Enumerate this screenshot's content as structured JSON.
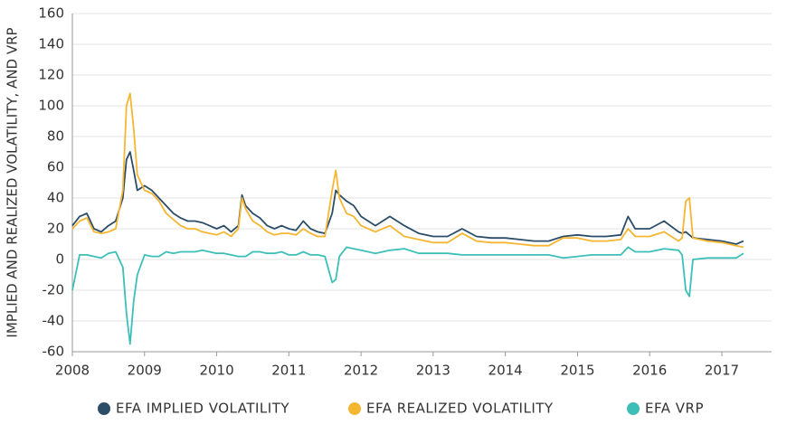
{
  "chart_data": {
    "type": "line",
    "y_label": "IMPLIED AND REALIZED VOLATILITY, AND VRP",
    "x": [
      2008.0,
      2008.1,
      2008.2,
      2008.3,
      2008.4,
      2008.5,
      2008.6,
      2008.7,
      2008.75,
      2008.8,
      2008.85,
      2008.9,
      2009.0,
      2009.1,
      2009.2,
      2009.3,
      2009.4,
      2009.5,
      2009.6,
      2009.7,
      2009.8,
      2009.9,
      2010.0,
      2010.1,
      2010.2,
      2010.3,
      2010.35,
      2010.4,
      2010.5,
      2010.6,
      2010.7,
      2010.8,
      2010.9,
      2011.0,
      2011.1,
      2011.2,
      2011.3,
      2011.4,
      2011.5,
      2011.6,
      2011.65,
      2011.7,
      2011.8,
      2011.9,
      2012.0,
      2012.2,
      2012.4,
      2012.6,
      2012.8,
      2013.0,
      2013.2,
      2013.4,
      2013.6,
      2013.8,
      2014.0,
      2014.2,
      2014.4,
      2014.6,
      2014.8,
      2015.0,
      2015.2,
      2015.4,
      2015.6,
      2015.7,
      2015.8,
      2016.0,
      2016.2,
      2016.4,
      2016.45,
      2016.5,
      2016.55,
      2016.6,
      2016.8,
      2017.0,
      2017.2,
      2017.3
    ],
    "series": [
      {
        "name": "EFA IMPLIED VOLATILITY",
        "color": "#2c4d68",
        "values": [
          22,
          28,
          30,
          20,
          18,
          22,
          25,
          40,
          65,
          70,
          58,
          45,
          48,
          45,
          40,
          35,
          30,
          27,
          25,
          25,
          24,
          22,
          20,
          22,
          18,
          22,
          42,
          35,
          30,
          27,
          22,
          20,
          22,
          20,
          19,
          25,
          20,
          18,
          17,
          30,
          45,
          42,
          38,
          35,
          28,
          22,
          28,
          22,
          17,
          15,
          15,
          20,
          15,
          14,
          14,
          13,
          12,
          12,
          15,
          16,
          15,
          15,
          16,
          28,
          20,
          20,
          25,
          18,
          17,
          18,
          16,
          14,
          13,
          12,
          10,
          12
        ]
      },
      {
        "name": "EFA REALIZED VOLATILITY",
        "color": "#f5b632",
        "values": [
          20,
          25,
          27,
          18,
          17,
          18,
          20,
          45,
          100,
          108,
          85,
          55,
          45,
          43,
          38,
          30,
          26,
          22,
          20,
          20,
          18,
          17,
          16,
          18,
          15,
          20,
          40,
          33,
          25,
          22,
          18,
          16,
          17,
          17,
          16,
          20,
          17,
          15,
          15,
          45,
          58,
          40,
          30,
          28,
          22,
          18,
          22,
          15,
          13,
          11,
          11,
          17,
          12,
          11,
          11,
          10,
          9,
          9,
          14,
          14,
          12,
          12,
          13,
          20,
          15,
          15,
          18,
          12,
          14,
          38,
          40,
          14,
          12,
          11,
          9,
          8
        ]
      },
      {
        "name": "EFA VRP",
        "color": "#3dbfb8",
        "values": [
          -20,
          3,
          3,
          2,
          1,
          4,
          5,
          -5,
          -35,
          -55,
          -27,
          -10,
          3,
          2,
          2,
          5,
          4,
          5,
          5,
          5,
          6,
          5,
          4,
          4,
          3,
          2,
          2,
          2,
          5,
          5,
          4,
          4,
          5,
          3,
          3,
          5,
          3,
          3,
          2,
          -15,
          -13,
          2,
          8,
          7,
          6,
          4,
          6,
          7,
          4,
          4,
          4,
          3,
          3,
          3,
          3,
          3,
          3,
          3,
          1,
          2,
          3,
          3,
          3,
          8,
          5,
          5,
          7,
          6,
          3,
          -20,
          -24,
          0,
          1,
          1,
          1,
          4
        ]
      }
    ],
    "xlim": [
      2008,
      2017.69
    ],
    "xticks": [
      2008,
      2009,
      2010,
      2011,
      2012,
      2013,
      2014,
      2015,
      2016,
      2017
    ],
    "ylim": [
      -60,
      160
    ],
    "yticks": [
      -60,
      -40,
      -20,
      0,
      20,
      40,
      60,
      80,
      100,
      120,
      140,
      160
    ],
    "grid": true
  }
}
